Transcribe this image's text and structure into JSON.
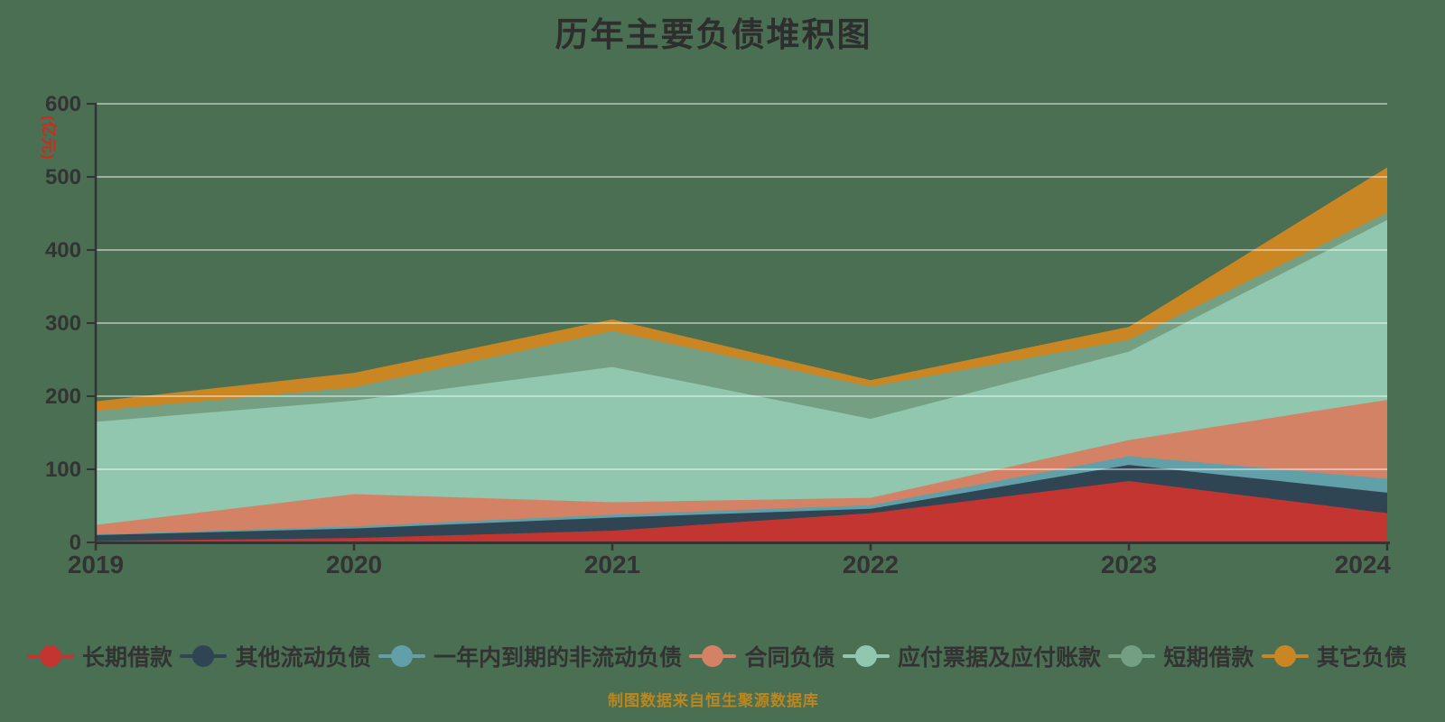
{
  "title": "历年主要负债堆积图",
  "footer_note": "制图数据来自恒生聚源数据库",
  "y_axis_name": "(亿元)",
  "colors": {
    "background": "#4a6f52",
    "title_text": "#2e2e2e",
    "axis_line": "#333333",
    "axis_label": "#333333",
    "gridline": "rgba(255,255,255,0.45)",
    "y_axis_name_text": "#d02a1a",
    "footer_text": "#bc861e",
    "legend_text": "#333333"
  },
  "chart_data": {
    "type": "area",
    "stacked": true,
    "title": "历年主要负债堆积图",
    "ylabel": "(亿元)",
    "categories": [
      "2019",
      "2020",
      "2021",
      "2022",
      "2023",
      "2024"
    ],
    "series": [
      {
        "name": "长期借款",
        "color": "#c23531",
        "values": [
          2,
          6,
          16,
          40,
          84,
          40
        ]
      },
      {
        "name": "其他流动负债",
        "color": "#2f4554",
        "values": [
          8,
          13,
          18,
          6,
          22,
          28
        ]
      },
      {
        "name": "一年内到期的非流动负债",
        "color": "#61a0a8",
        "values": [
          1,
          3,
          4,
          5,
          12,
          19
        ]
      },
      {
        "name": "合同负债",
        "color": "#d48265",
        "values": [
          13,
          44,
          17,
          10,
          22,
          108
        ]
      },
      {
        "name": "应付票据及应付账款",
        "color": "#91c7ae",
        "values": [
          141,
          128,
          185,
          108,
          121,
          246
        ]
      },
      {
        "name": "短期借款",
        "color": "#749f83",
        "values": [
          15,
          18,
          49,
          44,
          16,
          10
        ]
      },
      {
        "name": "其它负债",
        "color": "#ca8622",
        "values": [
          13,
          20,
          16,
          9,
          18,
          62
        ]
      }
    ],
    "ylim": [
      0,
      600
    ],
    "y_ticks": [
      0,
      100,
      200,
      300,
      400,
      500,
      600
    ],
    "grid": true,
    "legend_position": "bottom"
  }
}
